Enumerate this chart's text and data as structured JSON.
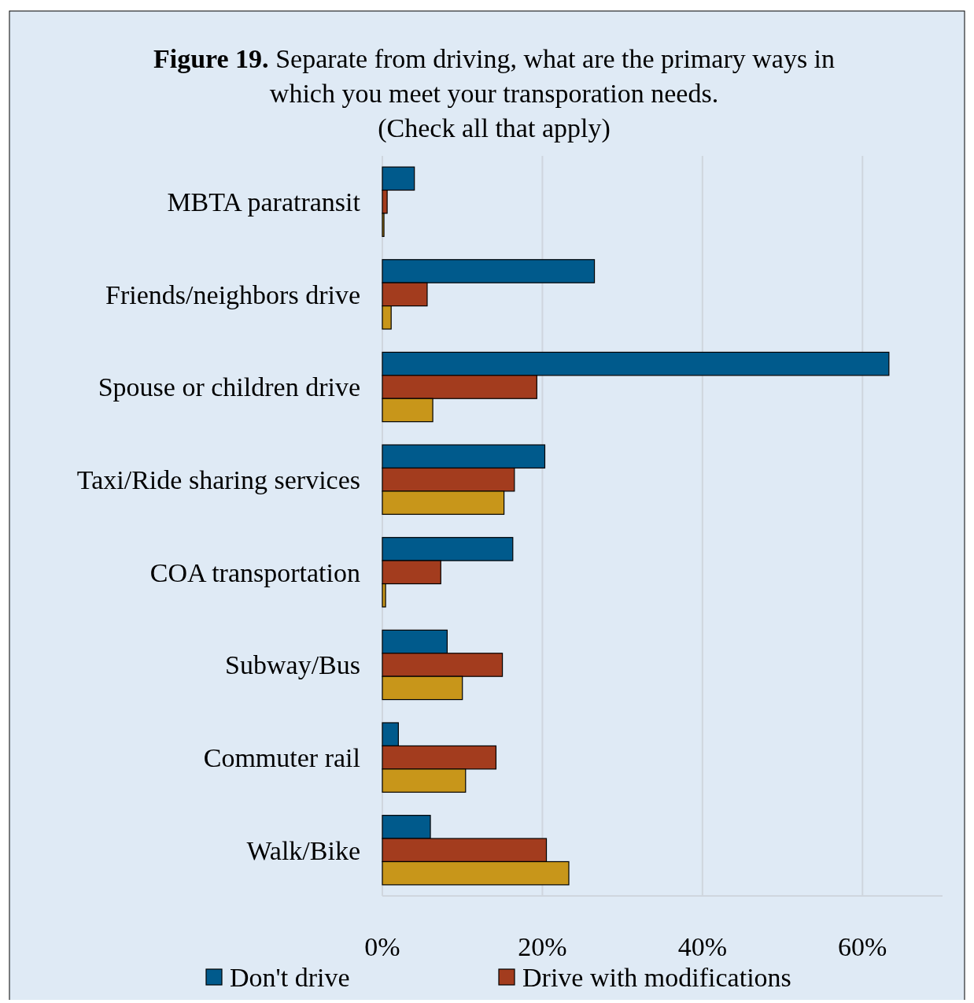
{
  "chart_data": {
    "type": "bar",
    "orientation": "horizontal",
    "title": "Figure 19. Separate from driving, what are the primary ways in which you meet your transporation needs.",
    "subtitle": "(Check all that apply)",
    "categories": [
      "MBTA paratransit",
      "Friends/neighbors drive",
      "Spouse or children drive",
      "Taxi/Ride sharing services",
      "COA transportation",
      "Subway/Bus",
      "Commuter rail",
      "Walk/Bike"
    ],
    "series": [
      {
        "name": "Don't drive",
        "color": "#005a8c",
        "values": [
          4.0,
          26.5,
          63.3,
          20.3,
          16.3,
          8.1,
          2.0,
          6.0
        ]
      },
      {
        "name": "Drive with modifications",
        "color": "#a33c1e",
        "values": [
          0.6,
          5.6,
          19.3,
          16.5,
          7.3,
          15.0,
          14.2,
          20.5
        ]
      },
      {
        "color": "#c8961a",
        "values": [
          0.2,
          1.1,
          6.3,
          15.2,
          0.4,
          10.0,
          10.4,
          23.3
        ]
      }
    ],
    "xlim": [
      0,
      70
    ],
    "xticks": [
      {
        "value": 0,
        "label": "0%"
      },
      {
        "value": 20,
        "label": "20%"
      },
      {
        "value": 40,
        "label": "40%"
      },
      {
        "value": 60,
        "label": "60%"
      }
    ],
    "grid": "x",
    "legend": "bottom"
  }
}
